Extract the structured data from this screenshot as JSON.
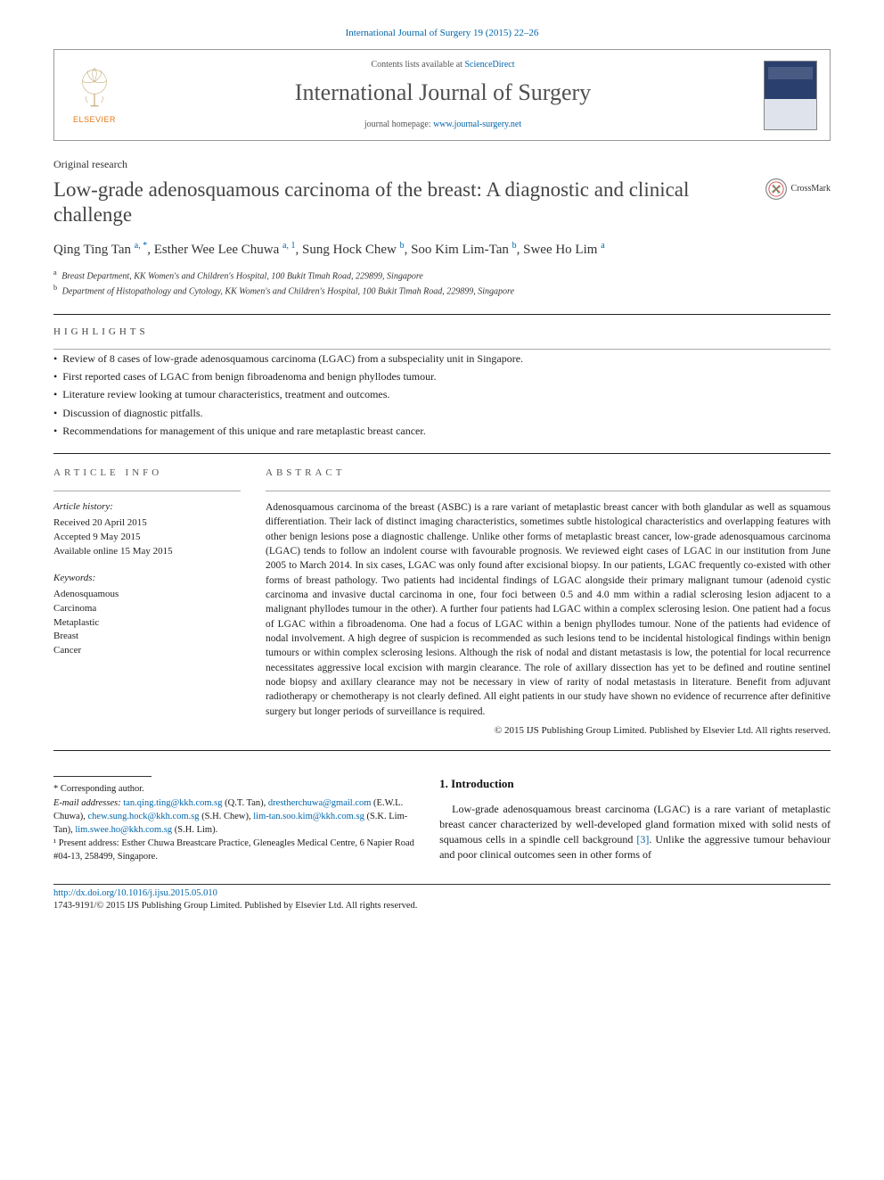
{
  "citation": "International Journal of Surgery 19 (2015) 22–26",
  "header": {
    "contents_prefix": "Contents lists available at ",
    "contents_link": "ScienceDirect",
    "journal": "International Journal of Surgery",
    "homepage_prefix": "journal homepage: ",
    "homepage_link": "www.journal-surgery.net",
    "publisher": "ELSEVIER"
  },
  "article_type": "Original research",
  "title": "Low-grade adenosquamous carcinoma of the breast: A diagnostic and clinical challenge",
  "crossmark": "CrossMark",
  "authors_html": "Qing Ting Tan <sup>a, *</sup>, Esther Wee Lee Chuwa <sup>a, 1</sup>, Sung Hock Chew <sup>b</sup>, Soo Kim Lim-Tan <sup>b</sup>, Swee Ho Lim <sup>a</sup>",
  "affiliations": [
    {
      "sup": "a",
      "text": "Breast Department, KK Women's and Children's Hospital, 100 Bukit Timah Road, 229899, Singapore"
    },
    {
      "sup": "b",
      "text": "Department of Histopathology and Cytology, KK Women's and Children's Hospital, 100 Bukit Timah Road, 229899, Singapore"
    }
  ],
  "highlights_label": "highlights",
  "highlights": [
    "Review of 8 cases of low-grade adenosquamous carcinoma (LGAC) from a subspeciality unit in Singapore.",
    "First reported cases of LGAC from benign fibroadenoma and benign phyllodes tumour.",
    "Literature review looking at tumour characteristics, treatment and outcomes.",
    "Discussion of diagnostic pitfalls.",
    "Recommendations for management of this unique and rare metaplastic breast cancer."
  ],
  "article_info": {
    "head": "article info",
    "history_label": "Article history:",
    "received": "Received 20 April 2015",
    "accepted": "Accepted 9 May 2015",
    "online": "Available online 15 May 2015",
    "keywords_label": "Keywords:",
    "keywords": [
      "Adenosquamous",
      "Carcinoma",
      "Metaplastic",
      "Breast",
      "Cancer"
    ]
  },
  "abstract": {
    "head": "abstract",
    "text": "Adenosquamous carcinoma of the breast (ASBC) is a rare variant of metaplastic breast cancer with both glandular as well as squamous differentiation. Their lack of distinct imaging characteristics, sometimes subtle histological characteristics and overlapping features with other benign lesions pose a diagnostic challenge. Unlike other forms of metaplastic breast cancer, low-grade adenosquamous carcinoma (LGAC) tends to follow an indolent course with favourable prognosis. We reviewed eight cases of LGAC in our institution from June 2005 to March 2014. In six cases, LGAC was only found after excisional biopsy. In our patients, LGAC frequently co-existed with other forms of breast pathology. Two patients had incidental findings of LGAC alongside their primary malignant tumour (adenoid cystic carcinoma and invasive ductal carcinoma in one, four foci between 0.5 and 4.0 mm within a radial sclerosing lesion adjacent to a malignant phyllodes tumour in the other). A further four patients had LGAC within a complex sclerosing lesion. One patient had a focus of LGAC within a fibroadenoma. One had a focus of LGAC within a benign phyllodes tumour. None of the patients had evidence of nodal involvement. A high degree of suspicion is recommended as such lesions tend to be incidental histological findings within benign tumours or within complex sclerosing lesions. Although the risk of nodal and distant metastasis is low, the potential for local recurrence necessitates aggressive local excision with margin clearance. The role of axillary dissection has yet to be defined and routine sentinel node biopsy and axillary clearance may not be necessary in view of rarity of nodal metastasis in literature. Benefit from adjuvant radiotherapy or chemotherapy is not clearly defined. All eight patients in our study have shown no evidence of recurrence after definitive surgery but longer periods of surveillance is required.",
    "copyright": "© 2015 IJS Publishing Group Limited. Published by Elsevier Ltd. All rights reserved."
  },
  "footnotes": {
    "corr": "* Corresponding author.",
    "email_label": "E-mail addresses:",
    "emails": [
      {
        "addr": "tan.qing.ting@kkh.com.sg",
        "who": "(Q.T. Tan)"
      },
      {
        "addr": "drestherchuwa@gmail.com",
        "who": "(E.W.L. Chuwa)"
      },
      {
        "addr": "chew.sung.hock@kkh.com.sg",
        "who": "(S.H. Chew)"
      },
      {
        "addr": "lim-tan.soo.kim@kkh.com.sg",
        "who": "(S.K. Lim-Tan)"
      },
      {
        "addr": "lim.swee.ho@kkh.com.sg",
        "who": "(S.H. Lim)"
      }
    ],
    "present": "¹ Present address: Esther Chuwa Breastcare Practice, Gleneagles Medical Centre, 6 Napier Road #04-13, 258499, Singapore."
  },
  "intro": {
    "head": "1. Introduction",
    "p1_pre": "Low-grade adenosquamous breast carcinoma (LGAC) is a rare variant of metaplastic breast cancer characterized by well-developed gland formation mixed with solid nests of squamous cells in a spindle cell background ",
    "ref": "[3]",
    "p1_post": ". Unlike the aggressive tumour behaviour and poor clinical outcomes seen in other forms of"
  },
  "doi": {
    "link": "http://dx.doi.org/10.1016/j.ijsu.2015.05.010",
    "issn": "1743-9191/© 2015 IJS Publishing Group Limited. Published by Elsevier Ltd. All rights reserved."
  }
}
